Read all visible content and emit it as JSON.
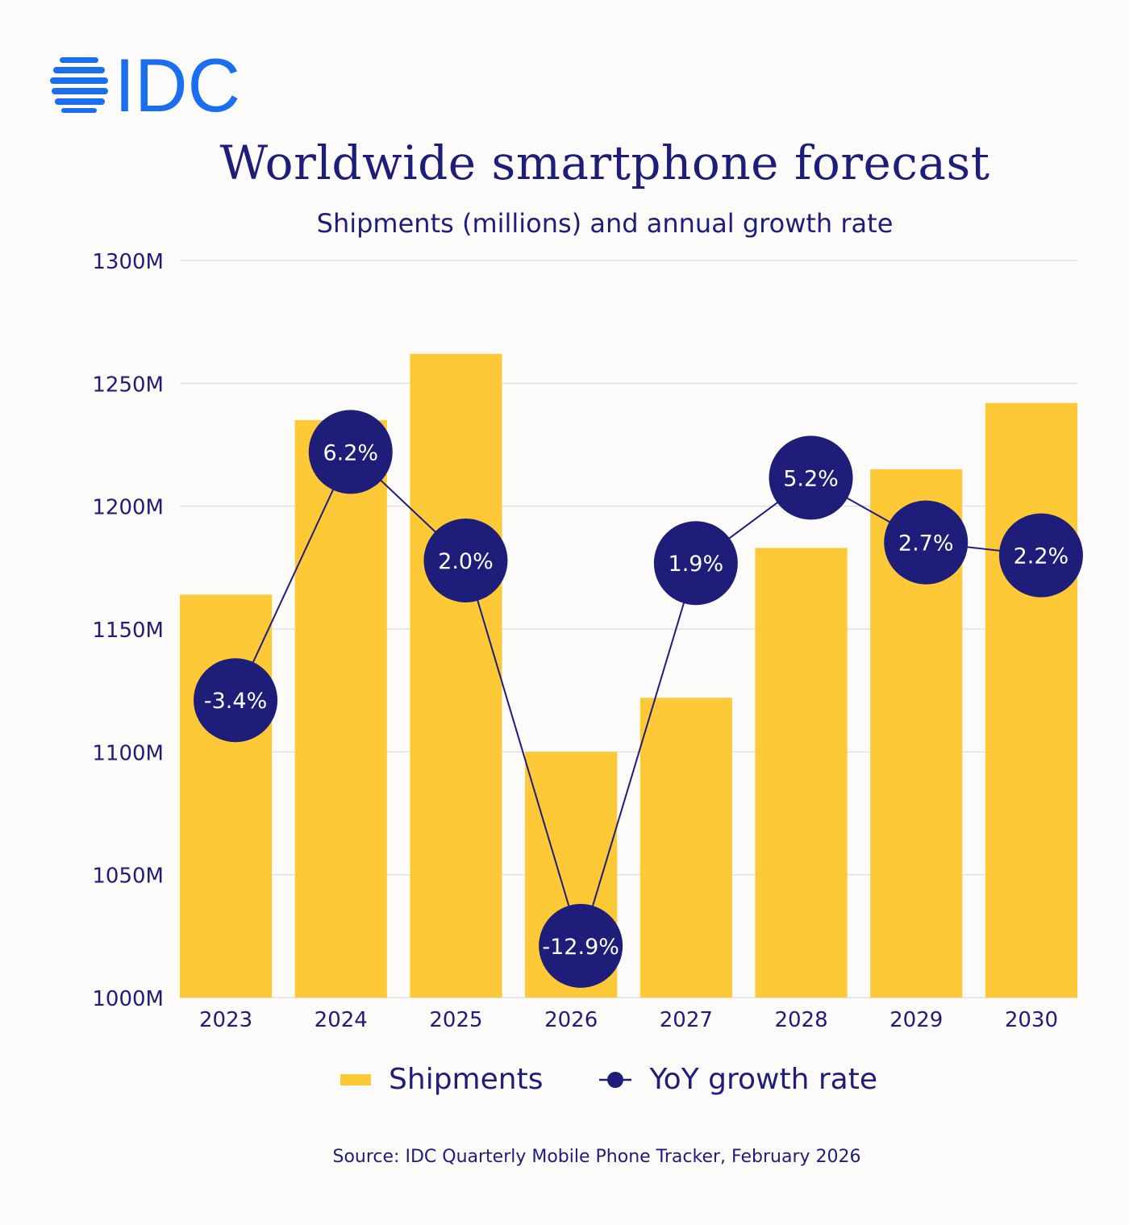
{
  "logo": {
    "text": "IDC",
    "color": "#1A6EF0"
  },
  "colors": {
    "bar": "#FDC936",
    "line": "#1E1E7A",
    "background": "#FCFBF9",
    "grid": "#D9D9E3"
  },
  "chart_data": {
    "type": "bar+line",
    "title": "Worldwide smartphone forecast",
    "subtitle": "Shipments (millions) and annual growth rate",
    "categories": [
      "2023",
      "2024",
      "2025",
      "2026",
      "2027",
      "2028",
      "2029",
      "2030"
    ],
    "series": [
      {
        "name": "Shipments",
        "type": "bar",
        "axis": "primary",
        "values": [
          1164,
          1235,
          1262,
          1100,
          1122,
          1183,
          1215,
          1242
        ]
      },
      {
        "name": "YoY growth rate",
        "type": "line",
        "axis": "secondary-hidden",
        "values": [
          -3.4,
          6.2,
          2.0,
          -12.9,
          1.9,
          5.2,
          2.7,
          2.2
        ],
        "labels": [
          "-3.4%",
          "6.2%",
          "2.0%",
          "-12.9%",
          "1.9%",
          "5.2%",
          "2.7%",
          "2.2%"
        ]
      }
    ],
    "ylim": [
      1000,
      1300
    ],
    "yticks": [
      1000,
      1050,
      1100,
      1150,
      1200,
      1250,
      1300
    ],
    "ytick_labels": [
      "1000M",
      "1050M",
      "1100M",
      "1150M",
      "1200M",
      "1250M",
      "1300M"
    ],
    "y2lim": [
      -14.9,
      13.6
    ],
    "grid": true,
    "legend_placement": "bottom",
    "legend": [
      "Shipments",
      "YoY growth rate"
    ],
    "source": "Source:  IDC Quarterly Mobile Phone Tracker, February 2026"
  }
}
